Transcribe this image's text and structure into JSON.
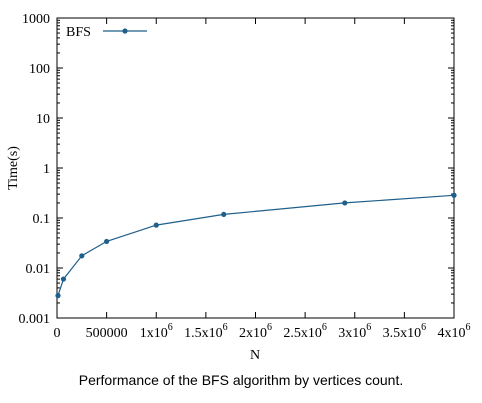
{
  "chart_data": {
    "type": "line",
    "title": "",
    "xlabel": "N",
    "ylabel": "Time(s)",
    "xlim": [
      0,
      4000000
    ],
    "ylim": [
      0.001,
      1000
    ],
    "y_scale": "log",
    "grid": false,
    "legend_position": "top-left",
    "x_ticks": [
      {
        "value": 0,
        "label": "0"
      },
      {
        "value": 500000,
        "label": "500000"
      },
      {
        "value": 1000000,
        "label": "1x10",
        "sup": "6"
      },
      {
        "value": 1500000,
        "label": "1.5x10",
        "sup": "6"
      },
      {
        "value": 2000000,
        "label": "2x10",
        "sup": "6"
      },
      {
        "value": 2500000,
        "label": "2.5x10",
        "sup": "6"
      },
      {
        "value": 3000000,
        "label": "3x10",
        "sup": "6"
      },
      {
        "value": 3500000,
        "label": "3.5x10",
        "sup": "6"
      },
      {
        "value": 4000000,
        "label": "4x10",
        "sup": "6"
      }
    ],
    "y_ticks": [
      {
        "value": 0.001,
        "label": "0.001"
      },
      {
        "value": 0.01,
        "label": "0.01"
      },
      {
        "value": 0.1,
        "label": "0.1"
      },
      {
        "value": 1,
        "label": "1"
      },
      {
        "value": 10,
        "label": "10"
      },
      {
        "value": 100,
        "label": "100"
      },
      {
        "value": 1000,
        "label": "1000"
      }
    ],
    "series": [
      {
        "name": "BFS",
        "color": "#1f5f8b",
        "x": [
          10000,
          65000,
          250000,
          500000,
          1000000,
          1680000,
          2900000,
          4000000
        ],
        "y": [
          0.0028,
          0.006,
          0.0175,
          0.034,
          0.072,
          0.118,
          0.2,
          0.285
        ]
      }
    ]
  },
  "caption": "Performance of the BFS algorithm by vertices count."
}
